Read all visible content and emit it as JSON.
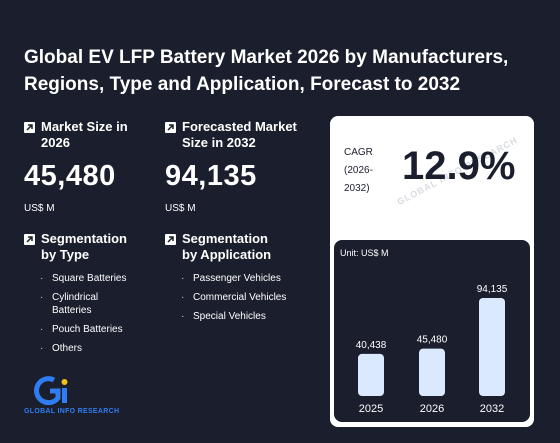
{
  "header": {
    "title": "Global EV LFP Battery Market 2026 by Manufacturers, Regions, Type and Application, Forecast to 2032"
  },
  "market_size": {
    "label": "Market Size in 2026",
    "value": "45,480",
    "unit": "US$ M"
  },
  "forecast": {
    "label": "Forecasted Market Size in 2032",
    "value": "94,135",
    "unit": "US$ M"
  },
  "cagr": {
    "label_line1": "CAGR",
    "label_line2": "(2026-",
    "label_line3": "2032)",
    "value": "12.9%"
  },
  "segment_type": {
    "heading": "Segmentation by Type",
    "items": [
      "Square Batteries",
      "Cylindrical Batteries",
      "Pouch Batteries",
      "Others"
    ]
  },
  "segment_application": {
    "heading": "Segmentation by Application",
    "items": [
      "Passenger Vehicles",
      "Commercial Vehicles",
      "Special Vehicles"
    ]
  },
  "logo": {
    "text": "GLOBAL INFO RESEARCH"
  },
  "colors": {
    "background": "#1b1e2c",
    "bar": "#dbe9ff",
    "logo_blue": "#2f7df0",
    "logo_yellow": "#f2c21b"
  },
  "icons": {
    "stat": "arrow-up-right-icon"
  },
  "chart_data": {
    "type": "bar",
    "unit_label": "Unit: US$ M",
    "categories": [
      "2025",
      "2026",
      "2032"
    ],
    "values": [
      40438,
      45480,
      94135
    ],
    "value_labels": [
      "40,438",
      "45,480",
      "94,135"
    ]
  }
}
